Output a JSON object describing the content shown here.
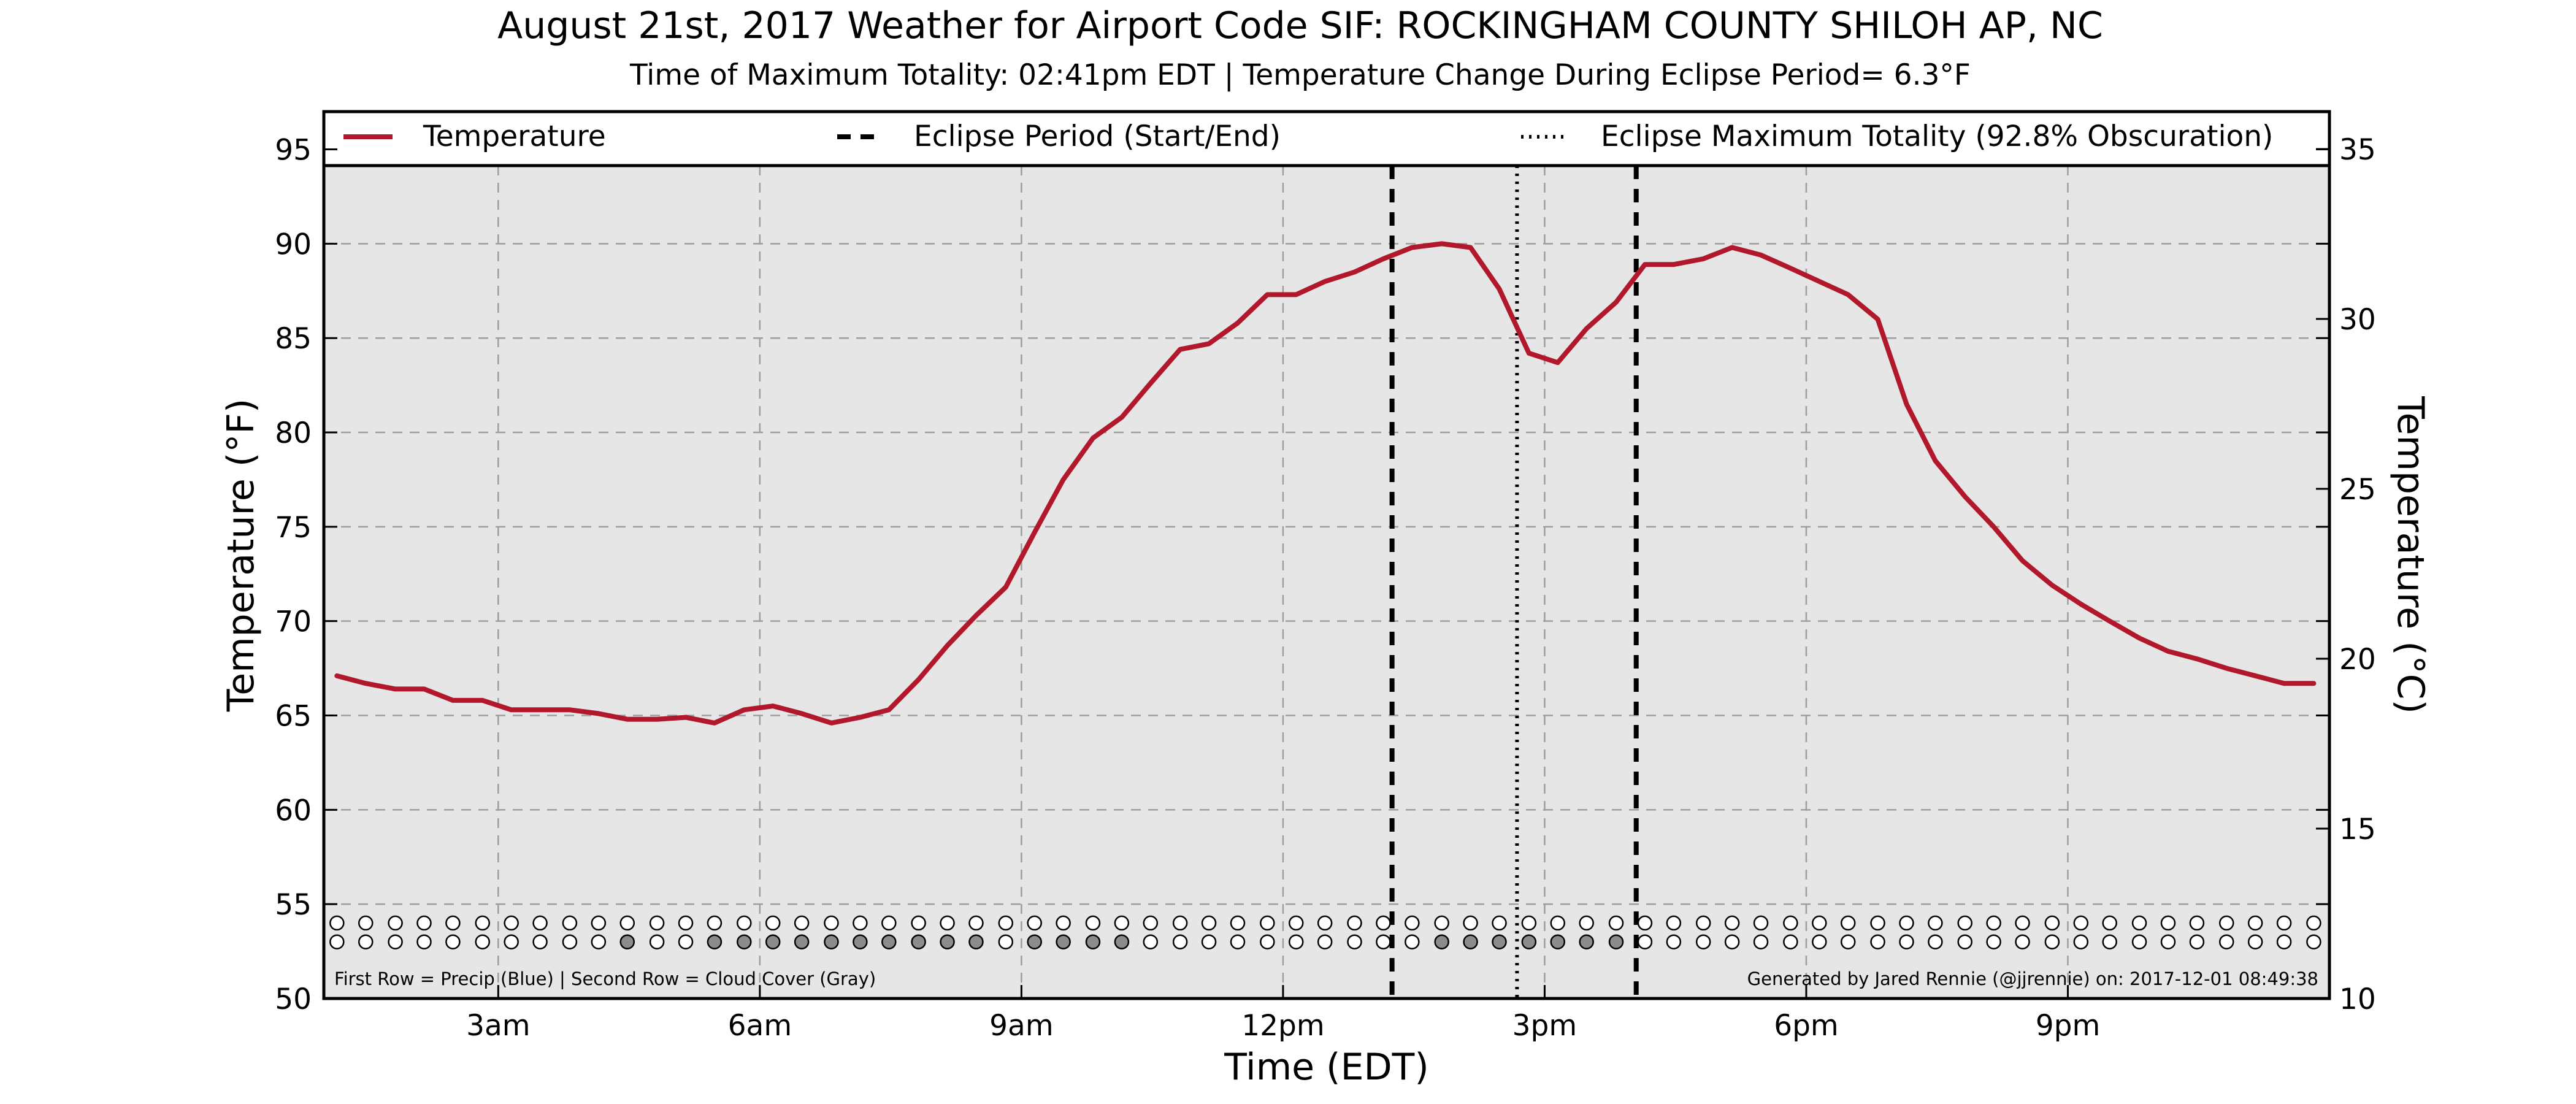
{
  "chart_data": {
    "type": "line",
    "title": "August 21st, 2017 Weather for Airport Code SIF: ROCKINGHAM COUNTY SHILOH AP, NC",
    "subtitle": "Time of Maximum Totality: 02:41pm EDT | Temperature Change During Eclipse Period= 6.3°F",
    "xlabel": "Time (EDT)",
    "ylabel": "Temperature (°F)",
    "ylabel_right": "Temperature (°C)",
    "xlim": [
      1.0,
      24.0
    ],
    "ylim": [
      50,
      97
    ],
    "ylim_right": [
      10,
      36.1
    ],
    "x_ticks": [
      {
        "x": 3,
        "label": "3am"
      },
      {
        "x": 6,
        "label": "6am"
      },
      {
        "x": 9,
        "label": "9am"
      },
      {
        "x": 12,
        "label": "12pm"
      },
      {
        "x": 15,
        "label": "3pm"
      },
      {
        "x": 18,
        "label": "6pm"
      },
      {
        "x": 21,
        "label": "9pm"
      }
    ],
    "y_ticks": [
      50,
      55,
      60,
      65,
      70,
      75,
      80,
      85,
      90,
      95
    ],
    "y_ticks_right": [
      10,
      15,
      20,
      25,
      30,
      35
    ],
    "grid": true,
    "legend_position": "top",
    "legend": [
      {
        "label": "Temperature",
        "style": "solid"
      },
      {
        "label": "Eclipse Period (Start/End)",
        "style": "dashed"
      },
      {
        "label": "Eclipse Maximum Totality (92.8% Obscuration)",
        "style": "dotted"
      }
    ],
    "series": [
      {
        "name": "Temperature",
        "color": "#b2182b",
        "x": [
          1.15,
          1.48,
          1.82,
          2.15,
          2.48,
          2.82,
          3.15,
          3.48,
          3.82,
          4.15,
          4.48,
          4.82,
          5.15,
          5.48,
          5.82,
          6.15,
          6.48,
          6.82,
          7.15,
          7.48,
          7.82,
          8.15,
          8.48,
          8.82,
          9.15,
          9.48,
          9.82,
          10.15,
          10.48,
          10.82,
          11.15,
          11.48,
          11.82,
          12.15,
          12.48,
          12.82,
          13.15,
          13.48,
          13.82,
          14.15,
          14.48,
          14.82,
          15.15,
          15.48,
          15.82,
          16.15,
          16.48,
          16.82,
          17.15,
          17.48,
          17.82,
          18.15,
          18.48,
          18.82,
          19.15,
          19.48,
          19.82,
          20.15,
          20.48,
          20.82,
          21.15,
          21.48,
          21.82,
          22.15,
          22.48,
          22.82,
          23.15,
          23.48,
          23.82
        ],
        "values": [
          67.1,
          66.7,
          66.4,
          66.4,
          65.8,
          65.8,
          65.3,
          65.3,
          65.3,
          65.1,
          64.8,
          64.8,
          64.9,
          64.6,
          65.3,
          65.5,
          65.1,
          64.6,
          64.9,
          65.3,
          66.9,
          68.7,
          70.3,
          71.8,
          74.7,
          77.5,
          79.7,
          80.8,
          82.6,
          84.4,
          84.7,
          85.8,
          87.3,
          87.3,
          88.0,
          88.5,
          89.2,
          89.8,
          90.0,
          89.8,
          87.6,
          84.2,
          83.7,
          85.5,
          86.9,
          88.9,
          88.9,
          89.2,
          89.8,
          89.4,
          88.7,
          88.0,
          87.3,
          86.0,
          81.5,
          78.5,
          76.6,
          75.0,
          73.2,
          71.9,
          70.9,
          70.0,
          69.1,
          68.4,
          68.0,
          67.5,
          67.1,
          66.7,
          66.7
        ]
      }
    ],
    "eclipse_start": 13.25,
    "eclipse_max": 14.6833,
    "eclipse_end": 16.05,
    "observation_rows": {
      "y_values": [
        54.0,
        53.0
      ],
      "points_x": [
        1.15,
        1.48,
        1.82,
        2.15,
        2.48,
        2.82,
        3.15,
        3.48,
        3.82,
        4.15,
        4.48,
        4.82,
        5.15,
        5.48,
        5.82,
        6.15,
        6.48,
        6.82,
        7.15,
        7.48,
        7.82,
        8.15,
        8.48,
        8.82,
        9.15,
        9.48,
        9.82,
        10.15,
        10.48,
        10.82,
        11.15,
        11.48,
        11.82,
        12.15,
        12.48,
        12.82,
        13.15,
        13.48,
        13.82,
        14.15,
        14.48,
        14.82,
        15.15,
        15.48,
        15.82,
        16.15,
        16.48,
        16.82,
        17.15,
        17.48,
        17.82,
        18.15,
        18.48,
        18.82,
        19.15,
        19.48,
        19.82,
        20.15,
        20.48,
        20.82,
        21.15,
        21.48,
        21.82,
        22.15,
        22.48,
        22.82,
        23.15,
        23.48,
        23.82
      ],
      "precip_color": "#ffffff",
      "cloud_clear_color": "#ffffff",
      "cloud_gray_color": "#8c8c8c",
      "cloud_gray": [
        false,
        false,
        false,
        false,
        false,
        false,
        false,
        false,
        false,
        false,
        true,
        false,
        false,
        true,
        true,
        true,
        true,
        true,
        true,
        true,
        true,
        true,
        true,
        false,
        true,
        true,
        true,
        true,
        false,
        false,
        false,
        false,
        false,
        false,
        false,
        false,
        false,
        false,
        true,
        true,
        true,
        true,
        true,
        true,
        true,
        false,
        false,
        false,
        false,
        false,
        false,
        false,
        false,
        false,
        false,
        false,
        false,
        false,
        false,
        false,
        false,
        false,
        false,
        false,
        false,
        false,
        false,
        false,
        false
      ]
    },
    "footnote_left": "First Row = Precip (Blue) | Second Row = Cloud Cover (Gray)",
    "footnote_right": "Generated by Jared Rennie (@jjrennie) on: 2017-12-01 08:49:38"
  }
}
